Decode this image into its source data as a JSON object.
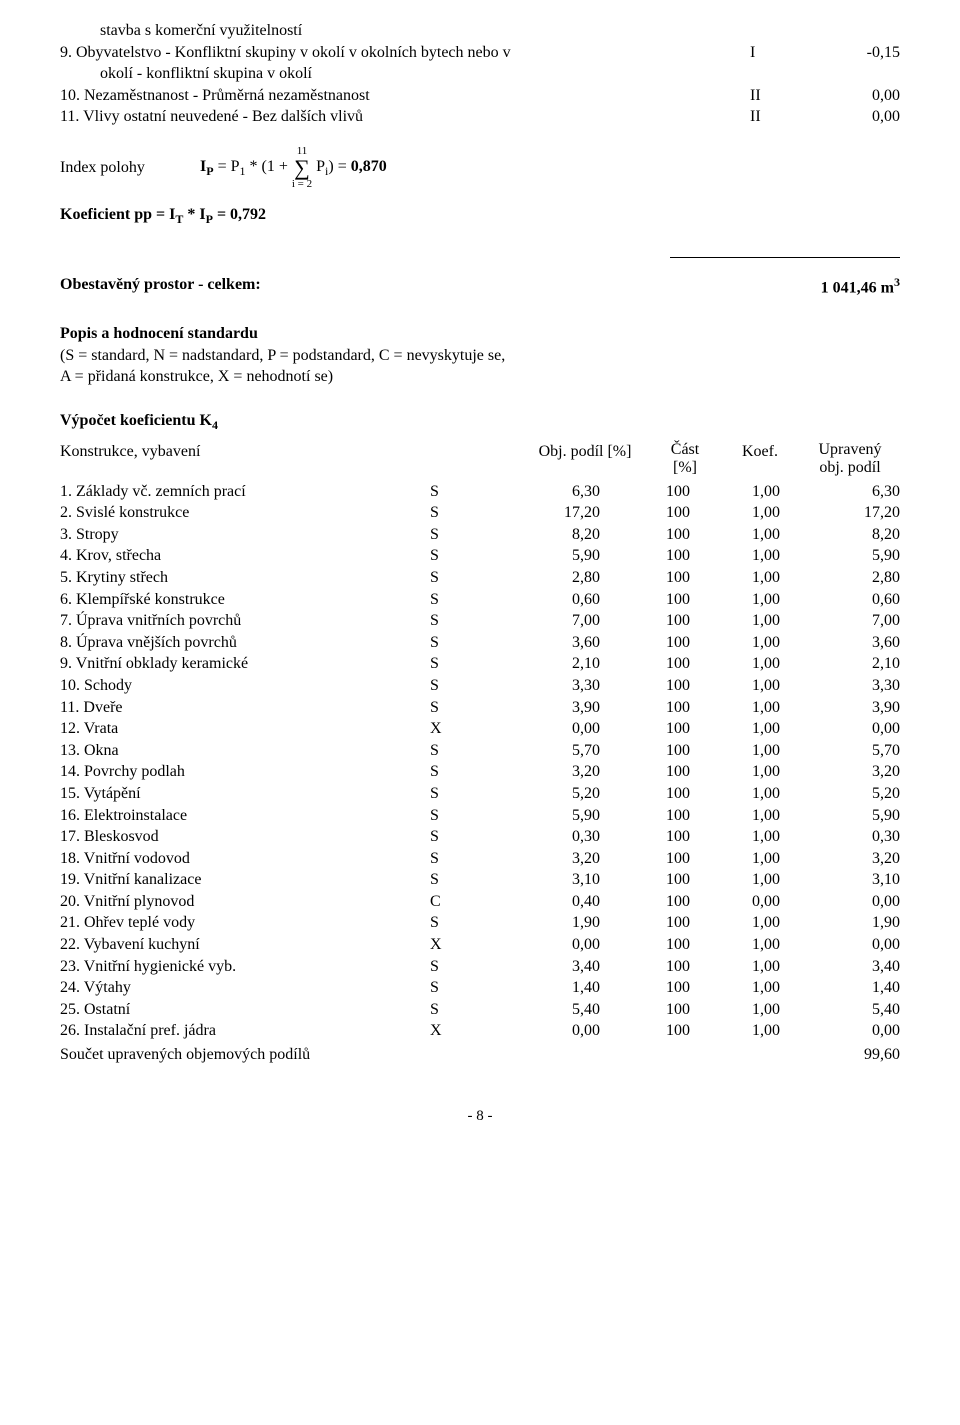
{
  "intro": {
    "line1_indent": "stavba s komerční využitelností",
    "item9_left": "9. Obyvatelstvo - Konfliktní skupiny v okolí v okolních bytech nebo v",
    "item9_indent": "okolí - konfliktní skupina v okolí",
    "item9_c1": "I",
    "item9_c2": "-0,15",
    "item10_left": "10. Nezaměstnanost - Průměrná nezaměstnanost",
    "item10_c1": "II",
    "item10_c2": "0,00",
    "item11_left": "11. Vlivy ostatní neuvedené - Bez dalších vlivů",
    "item11_c1": "II",
    "item11_c2": "0,00"
  },
  "formula": {
    "index_label": "Index polohy",
    "ip_prefix": "I",
    "ip_sub": "P",
    "eq1": " = P",
    "one_sub": "1",
    "mid": " * (1 + ",
    "sum_top": "11",
    "sum_bot": "i = 2",
    "pi": " P",
    "pi_sub": "i",
    "tail": ") = ",
    "val": "0,870",
    "koef_line_a": "Koeficient pp = I",
    "koef_sub_t": "T",
    "koef_mid": " * I",
    "koef_sub_p": "P",
    "koef_tail": " = 0,792"
  },
  "obest": {
    "label": "Obestavěný prostor - celkem:",
    "value": "1 041,46 m",
    "exp": "3"
  },
  "standard": {
    "title": "Popis a hodnocení standardu",
    "line1": "(S = standard, N = nadstandard, P = podstandard, C = nevyskytuje se,",
    "line2": "A = přidaná konstrukce, X = nehodnotí se)"
  },
  "k4": {
    "title": "Výpočet koeficientu K",
    "title_sub": "4",
    "h_name": "Konstrukce, vybavení",
    "h_obj": "Obj. podíl [%]",
    "h_cast1": "Část",
    "h_cast2": "[%]",
    "h_koef": "Koef.",
    "h_upr1": "Upravený",
    "h_upr2": "obj. podíl",
    "rows": [
      {
        "n": "1. Základy vč. zemních prací",
        "s": "S",
        "o": "6,30",
        "c": "100",
        "k": "1,00",
        "u": "6,30"
      },
      {
        "n": "2. Svislé konstrukce",
        "s": "S",
        "o": "17,20",
        "c": "100",
        "k": "1,00",
        "u": "17,20"
      },
      {
        "n": "3. Stropy",
        "s": "S",
        "o": "8,20",
        "c": "100",
        "k": "1,00",
        "u": "8,20"
      },
      {
        "n": "4. Krov, střecha",
        "s": "S",
        "o": "5,90",
        "c": "100",
        "k": "1,00",
        "u": "5,90"
      },
      {
        "n": "5. Krytiny střech",
        "s": "S",
        "o": "2,80",
        "c": "100",
        "k": "1,00",
        "u": "2,80"
      },
      {
        "n": "6. Klempířské konstrukce",
        "s": "S",
        "o": "0,60",
        "c": "100",
        "k": "1,00",
        "u": "0,60"
      },
      {
        "n": "7. Úprava vnitřních povrchů",
        "s": "S",
        "o": "7,00",
        "c": "100",
        "k": "1,00",
        "u": "7,00"
      },
      {
        "n": "8. Úprava vnějších povrchů",
        "s": "S",
        "o": "3,60",
        "c": "100",
        "k": "1,00",
        "u": "3,60"
      },
      {
        "n": "9. Vnitřní obklady keramické",
        "s": "S",
        "o": "2,10",
        "c": "100",
        "k": "1,00",
        "u": "2,10"
      },
      {
        "n": "10. Schody",
        "s": "S",
        "o": "3,30",
        "c": "100",
        "k": "1,00",
        "u": "3,30"
      },
      {
        "n": "11. Dveře",
        "s": "S",
        "o": "3,90",
        "c": "100",
        "k": "1,00",
        "u": "3,90"
      },
      {
        "n": "12. Vrata",
        "s": "X",
        "o": "0,00",
        "c": "100",
        "k": "1,00",
        "u": "0,00"
      },
      {
        "n": "13. Okna",
        "s": "S",
        "o": "5,70",
        "c": "100",
        "k": "1,00",
        "u": "5,70"
      },
      {
        "n": "14. Povrchy podlah",
        "s": "S",
        "o": "3,20",
        "c": "100",
        "k": "1,00",
        "u": "3,20"
      },
      {
        "n": "15. Vytápění",
        "s": "S",
        "o": "5,20",
        "c": "100",
        "k": "1,00",
        "u": "5,20"
      },
      {
        "n": "16. Elektroinstalace",
        "s": "S",
        "o": "5,90",
        "c": "100",
        "k": "1,00",
        "u": "5,90"
      },
      {
        "n": "17. Bleskosvod",
        "s": "S",
        "o": "0,30",
        "c": "100",
        "k": "1,00",
        "u": "0,30"
      },
      {
        "n": "18. Vnitřní vodovod",
        "s": "S",
        "o": "3,20",
        "c": "100",
        "k": "1,00",
        "u": "3,20"
      },
      {
        "n": "19. Vnitřní kanalizace",
        "s": "S",
        "o": "3,10",
        "c": "100",
        "k": "1,00",
        "u": "3,10"
      },
      {
        "n": "20. Vnitřní plynovod",
        "s": "C",
        "o": "0,40",
        "c": "100",
        "k": "0,00",
        "u": "0,00"
      },
      {
        "n": "21. Ohřev teplé vody",
        "s": "S",
        "o": "1,90",
        "c": "100",
        "k": "1,00",
        "u": "1,90"
      },
      {
        "n": "22. Vybavení kuchyní",
        "s": "X",
        "o": "0,00",
        "c": "100",
        "k": "1,00",
        "u": "0,00"
      },
      {
        "n": "23. Vnitřní hygienické vyb.",
        "s": "S",
        "o": "3,40",
        "c": "100",
        "k": "1,00",
        "u": "3,40"
      },
      {
        "n": "24. Výtahy",
        "s": "S",
        "o": "1,40",
        "c": "100",
        "k": "1,00",
        "u": "1,40"
      },
      {
        "n": "25. Ostatní",
        "s": "S",
        "o": "5,40",
        "c": "100",
        "k": "1,00",
        "u": "5,40"
      },
      {
        "n": "26. Instalační pref. jádra",
        "s": "X",
        "o": "0,00",
        "c": "100",
        "k": "1,00",
        "u": "0,00"
      }
    ],
    "sum_label": "Součet upravených objemových podílů",
    "sum_value": "99,60"
  },
  "page": "- 8 -"
}
